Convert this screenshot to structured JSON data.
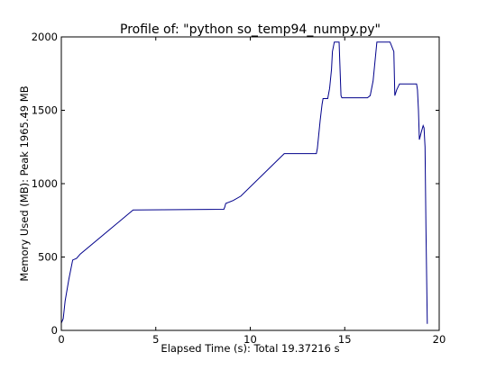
{
  "chart_data": {
    "type": "line",
    "title": "Profile of: \"python so_temp94_numpy.py\"",
    "xlabel": "Elapsed Time (s): Total 19.37216 s",
    "ylabel": "Memory Used (MB): Peak 1965.49 MB",
    "xlim": [
      0,
      20
    ],
    "ylim": [
      0,
      2000
    ],
    "xticks": [
      0,
      5,
      10,
      15,
      20
    ],
    "yticks": [
      0,
      500,
      1000,
      1500,
      2000
    ],
    "grid": false,
    "line_color": "#00008b",
    "series": [
      {
        "x": [
          0.0,
          0.1,
          0.2,
          0.4,
          0.6,
          0.8,
          1.0,
          3.8,
          8.6,
          8.65,
          8.7,
          9.1,
          9.5,
          11.8,
          13.5,
          13.55,
          13.7,
          13.8,
          13.85,
          14.1,
          14.2,
          14.3,
          14.35,
          14.45,
          14.7,
          14.8,
          14.85,
          16.2,
          16.35,
          16.5,
          16.7,
          17.0,
          17.4,
          17.6,
          17.65,
          17.75,
          17.9,
          18.0,
          18.8,
          18.85,
          18.9,
          18.95,
          19.05,
          19.15,
          19.2,
          19.25,
          19.3,
          19.37
        ],
        "y": [
          50,
          80,
          200,
          350,
          480,
          490,
          520,
          820,
          825,
          840,
          865,
          885,
          915,
          1205,
          1205,
          1240,
          1430,
          1540,
          1580,
          1580,
          1650,
          1780,
          1900,
          1965,
          1965,
          1600,
          1585,
          1585,
          1600,
          1700,
          1965,
          1965,
          1965,
          1900,
          1600,
          1640,
          1680,
          1680,
          1680,
          1640,
          1500,
          1300,
          1350,
          1395,
          1380,
          1250,
          700,
          45
        ]
      }
    ]
  }
}
